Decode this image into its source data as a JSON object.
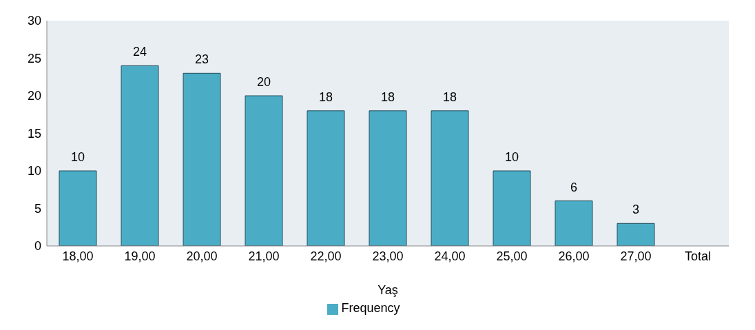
{
  "chart_data": {
    "type": "bar",
    "xlabel": "Yaş",
    "categories": [
      "18,00",
      "19,00",
      "20,00",
      "21,00",
      "22,00",
      "23,00",
      "24,00",
      "25,00",
      "26,00",
      "27,00",
      "Total"
    ],
    "series": [
      {
        "name": "Frequency",
        "color": "#4bacc6",
        "values": [
          10,
          24,
          23,
          20,
          18,
          18,
          18,
          10,
          6,
          3,
          null
        ]
      }
    ],
    "ylim": [
      0,
      30
    ],
    "yticks": [
      0,
      5,
      10,
      15,
      20,
      25,
      30
    ],
    "grid": false,
    "legend": "bottom",
    "data_labels": true
  }
}
